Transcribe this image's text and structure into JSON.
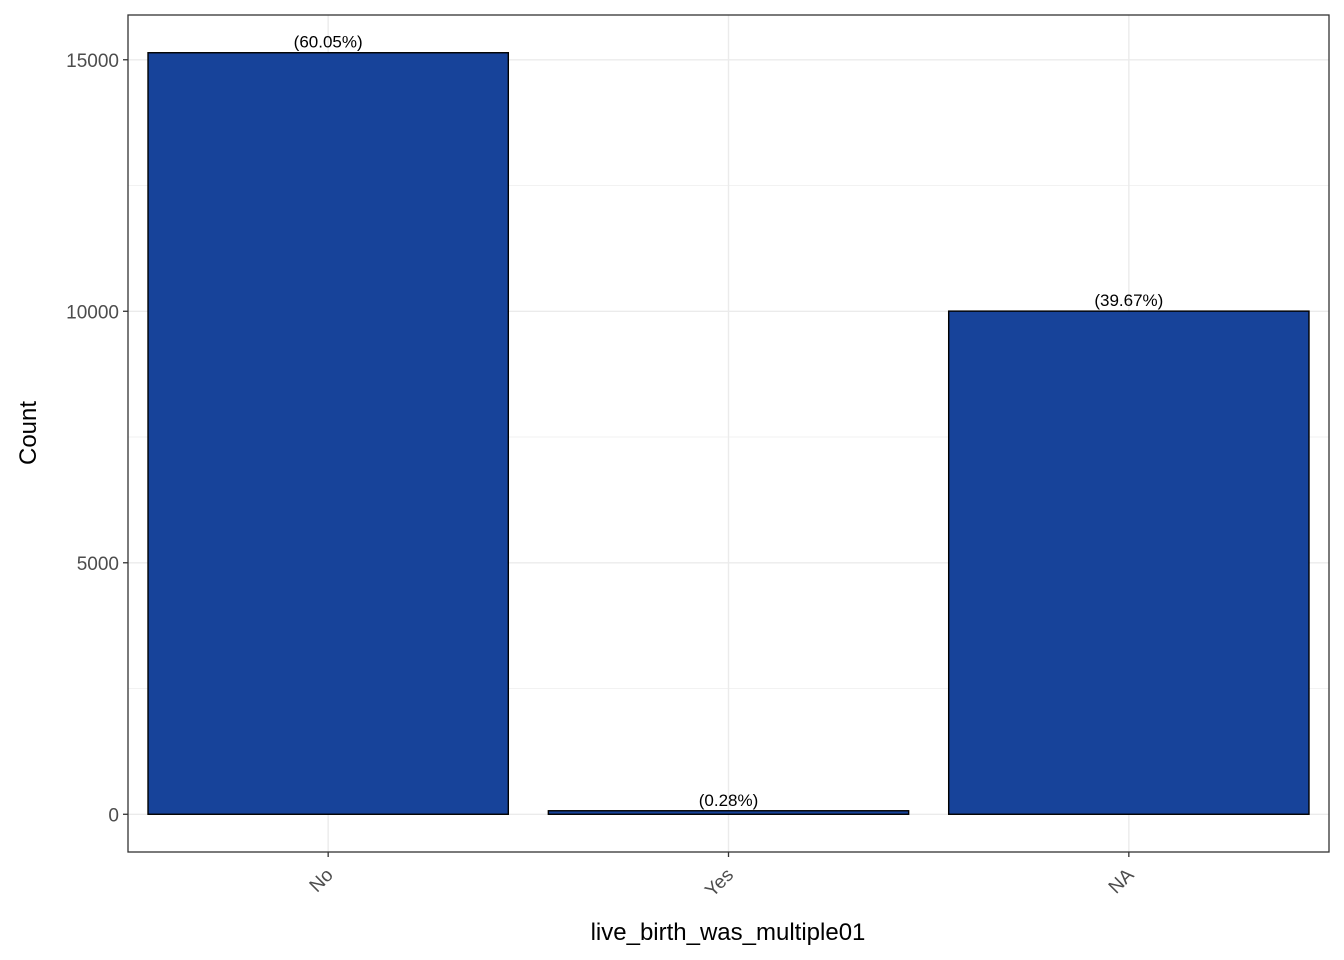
{
  "chart_data": {
    "type": "bar",
    "title": "",
    "xlabel": "live_birth_was_multiple01",
    "ylabel": "Count",
    "categories": [
      "No",
      "Yes",
      "NA"
    ],
    "values": [
      15140,
      70,
      10003
    ],
    "data_labels": [
      "(60.05%)",
      "(0.28%)",
      "(39.67%)"
    ],
    "ylim": [
      -750,
      15890
    ],
    "y_ticks": [
      0,
      5000,
      10000,
      15000
    ],
    "y_tick_labels": [
      "0",
      "5000",
      "10000",
      "15000"
    ],
    "grid": true,
    "legend": "none",
    "bar_color": "#17439a",
    "bar_outline": "#000000"
  }
}
